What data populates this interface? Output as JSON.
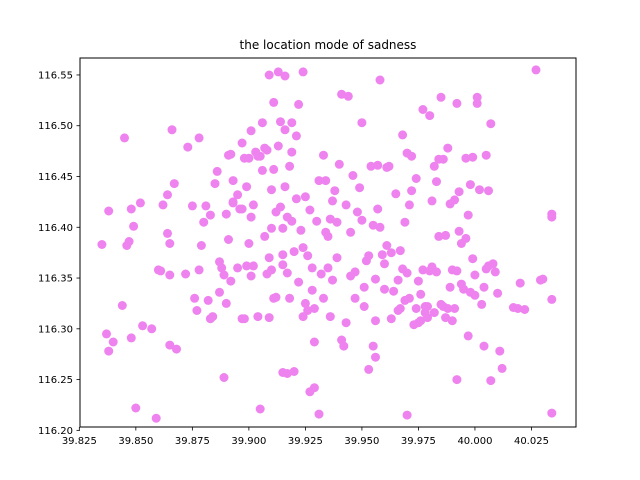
{
  "chart_data": {
    "type": "scatter",
    "title": "the location mode of sadness",
    "xlabel": "",
    "ylabel": "",
    "xlim": [
      39.8253,
      40.0447
    ],
    "ylim": [
      116.2033,
      116.5667
    ],
    "x_ticks": [
      "39.825",
      "39.850",
      "39.875",
      "39.900",
      "39.925",
      "39.950",
      "39.975",
      "40.000",
      "40.025"
    ],
    "y_ticks": [
      "116.20",
      "116.25",
      "116.30",
      "116.35",
      "116.40",
      "116.45",
      "116.50",
      "116.55"
    ],
    "grid": false,
    "legend": "none",
    "marker_color": "#ee82ee",
    "points": [
      [
        39.835,
        116.383
      ],
      [
        39.837,
        116.295
      ],
      [
        39.838,
        116.416
      ],
      [
        39.838,
        116.278
      ],
      [
        39.84,
        116.287
      ],
      [
        39.844,
        116.323
      ],
      [
        39.845,
        116.488
      ],
      [
        39.846,
        116.382
      ],
      [
        39.847,
        116.386
      ],
      [
        39.848,
        116.291
      ],
      [
        39.848,
        116.418
      ],
      [
        39.849,
        116.401
      ],
      [
        39.85,
        116.222
      ],
      [
        39.852,
        116.424
      ],
      [
        39.853,
        116.303
      ],
      [
        39.857,
        116.3
      ],
      [
        39.859,
        116.212
      ],
      [
        39.86,
        116.358
      ],
      [
        39.861,
        116.357
      ],
      [
        39.862,
        116.422
      ],
      [
        39.864,
        116.432
      ],
      [
        39.864,
        116.394
      ],
      [
        39.865,
        116.384
      ],
      [
        39.865,
        116.353
      ],
      [
        39.865,
        116.284
      ],
      [
        39.866,
        116.496
      ],
      [
        39.867,
        116.443
      ],
      [
        39.868,
        116.28
      ],
      [
        39.872,
        116.354
      ],
      [
        39.873,
        116.479
      ],
      [
        39.875,
        116.421
      ],
      [
        39.876,
        116.33
      ],
      [
        39.877,
        116.318
      ],
      [
        39.878,
        116.358
      ],
      [
        39.878,
        116.488
      ],
      [
        39.879,
        116.382
      ],
      [
        39.88,
        116.405
      ],
      [
        39.881,
        116.421
      ],
      [
        39.882,
        116.328
      ],
      [
        39.883,
        116.412
      ],
      [
        39.883,
        116.31
      ],
      [
        39.884,
        116.312
      ],
      [
        39.885,
        116.443
      ],
      [
        39.886,
        116.455
      ],
      [
        39.887,
        116.366
      ],
      [
        39.887,
        116.336
      ],
      [
        39.888,
        116.36
      ],
      [
        39.889,
        116.353
      ],
      [
        39.889,
        116.252
      ],
      [
        39.89,
        116.413
      ],
      [
        39.89,
        116.325
      ],
      [
        39.891,
        116.471
      ],
      [
        39.891,
        116.388
      ],
      [
        39.892,
        116.472
      ],
      [
        39.892,
        116.347
      ],
      [
        39.893,
        116.425
      ],
      [
        39.893,
        116.446
      ],
      [
        39.893,
        116.424
      ],
      [
        39.895,
        116.432
      ],
      [
        39.895,
        116.36
      ],
      [
        39.896,
        116.418
      ],
      [
        39.897,
        116.418
      ],
      [
        39.897,
        116.31
      ],
      [
        39.897,
        116.483
      ],
      [
        39.898,
        116.468
      ],
      [
        39.898,
        116.31
      ],
      [
        39.899,
        116.362
      ],
      [
        39.899,
        116.44
      ],
      [
        39.9,
        116.468
      ],
      [
        39.9,
        116.384
      ],
      [
        39.901,
        116.352
      ],
      [
        39.901,
        116.41
      ],
      [
        39.901,
        116.495
      ],
      [
        39.902,
        116.362
      ],
      [
        39.902,
        116.422
      ],
      [
        39.903,
        116.474
      ],
      [
        39.904,
        116.47
      ],
      [
        39.904,
        116.312
      ],
      [
        39.905,
        116.47
      ],
      [
        39.905,
        116.221
      ],
      [
        39.906,
        116.503
      ],
      [
        39.906,
        116.456
      ],
      [
        39.907,
        116.391
      ],
      [
        39.907,
        116.478
      ],
      [
        39.908,
        116.476
      ],
      [
        39.908,
        116.354
      ],
      [
        39.909,
        116.311
      ],
      [
        39.909,
        116.37
      ],
      [
        39.909,
        116.55
      ],
      [
        39.91,
        116.358
      ],
      [
        39.91,
        116.399
      ],
      [
        39.91,
        116.437
      ],
      [
        39.911,
        116.523
      ],
      [
        39.911,
        116.457
      ],
      [
        39.911,
        116.33
      ],
      [
        39.912,
        116.331
      ],
      [
        39.912,
        116.415
      ],
      [
        39.913,
        116.553
      ],
      [
        39.913,
        116.48
      ],
      [
        39.914,
        116.504
      ],
      [
        39.914,
        116.42
      ],
      [
        39.915,
        116.399
      ],
      [
        39.915,
        116.363
      ],
      [
        39.915,
        116.373
      ],
      [
        39.915,
        116.257
      ],
      [
        39.916,
        116.549
      ],
      [
        39.916,
        116.496
      ],
      [
        39.916,
        116.44
      ],
      [
        39.917,
        116.355
      ],
      [
        39.917,
        116.256
      ],
      [
        39.917,
        116.41
      ],
      [
        39.918,
        116.46
      ],
      [
        39.918,
        116.33
      ],
      [
        39.919,
        116.503
      ],
      [
        39.919,
        116.474
      ],
      [
        39.919,
        116.406
      ],
      [
        39.92,
        116.376
      ],
      [
        39.92,
        116.258
      ],
      [
        39.921,
        116.49
      ],
      [
        39.921,
        116.428
      ],
      [
        39.922,
        116.521
      ],
      [
        39.922,
        116.346
      ],
      [
        39.923,
        116.397
      ],
      [
        39.924,
        116.312
      ],
      [
        39.924,
        116.553
      ],
      [
        39.924,
        116.38
      ],
      [
        39.925,
        116.43
      ],
      [
        39.925,
        116.325
      ],
      [
        39.926,
        116.318
      ],
      [
        39.926,
        116.372
      ],
      [
        39.927,
        116.238
      ],
      [
        39.927,
        116.417
      ],
      [
        39.928,
        116.36
      ],
      [
        39.928,
        116.338
      ],
      [
        39.929,
        116.32
      ],
      [
        39.929,
        116.242
      ],
      [
        39.929,
        116.287
      ],
      [
        39.93,
        116.406
      ],
      [
        39.931,
        116.216
      ],
      [
        39.931,
        116.446
      ],
      [
        39.932,
        116.354
      ],
      [
        39.933,
        116.33
      ],
      [
        39.933,
        116.471
      ],
      [
        39.934,
        116.395
      ],
      [
        39.934,
        116.446
      ],
      [
        39.935,
        116.36
      ],
      [
        39.935,
        116.391
      ],
      [
        39.936,
        116.408
      ],
      [
        39.936,
        116.312
      ],
      [
        39.937,
        116.348
      ],
      [
        39.937,
        116.426
      ],
      [
        39.938,
        116.436
      ],
      [
        39.939,
        116.37
      ],
      [
        39.939,
        116.405
      ],
      [
        39.94,
        116.462
      ],
      [
        39.941,
        116.531
      ],
      [
        39.941,
        116.289
      ],
      [
        39.942,
        116.283
      ],
      [
        39.943,
        116.306
      ],
      [
        39.943,
        116.422
      ],
      [
        39.944,
        116.529
      ],
      [
        39.945,
        116.352
      ],
      [
        39.945,
        116.395
      ],
      [
        39.946,
        116.451
      ],
      [
        39.947,
        116.33
      ],
      [
        39.947,
        116.356
      ],
      [
        39.948,
        116.415
      ],
      [
        39.949,
        116.439
      ],
      [
        39.95,
        116.407
      ],
      [
        39.95,
        116.503
      ],
      [
        39.951,
        116.322
      ],
      [
        39.951,
        116.341
      ],
      [
        39.952,
        116.367
      ],
      [
        39.953,
        116.372
      ],
      [
        39.953,
        116.26
      ],
      [
        39.954,
        116.46
      ],
      [
        39.955,
        116.283
      ],
      [
        39.955,
        116.402
      ],
      [
        39.956,
        116.308
      ],
      [
        39.956,
        116.349
      ],
      [
        39.956,
        116.272
      ],
      [
        39.957,
        116.461
      ],
      [
        39.957,
        116.418
      ],
      [
        39.958,
        116.545
      ],
      [
        39.958,
        116.4
      ],
      [
        39.959,
        116.373
      ],
      [
        39.96,
        116.339
      ],
      [
        39.96,
        116.364
      ],
      [
        39.961,
        116.459
      ],
      [
        39.961,
        116.382
      ],
      [
        39.962,
        116.46
      ],
      [
        39.963,
        116.31
      ],
      [
        39.963,
        116.375
      ],
      [
        39.964,
        116.337
      ],
      [
        39.965,
        116.433
      ],
      [
        39.966,
        116.318
      ],
      [
        39.966,
        116.348
      ],
      [
        39.967,
        116.32
      ],
      [
        39.967,
        116.377
      ],
      [
        39.968,
        116.359
      ],
      [
        39.968,
        116.491
      ],
      [
        39.969,
        116.328
      ],
      [
        39.969,
        116.405
      ],
      [
        39.97,
        116.215
      ],
      [
        39.97,
        116.473
      ],
      [
        39.97,
        116.355
      ],
      [
        39.971,
        116.422
      ],
      [
        39.971,
        116.33
      ],
      [
        39.972,
        116.436
      ],
      [
        39.972,
        116.47
      ],
      [
        39.973,
        116.304
      ],
      [
        39.974,
        116.448
      ],
      [
        39.974,
        116.32
      ],
      [
        39.975,
        116.306
      ],
      [
        39.975,
        116.347
      ],
      [
        39.976,
        116.308
      ],
      [
        39.976,
        116.334
      ],
      [
        39.977,
        116.516
      ],
      [
        39.977,
        116.358
      ],
      [
        39.978,
        116.322
      ],
      [
        39.978,
        116.316
      ],
      [
        39.979,
        116.322
      ],
      [
        39.979,
        116.311
      ],
      [
        39.98,
        116.51
      ],
      [
        39.98,
        116.357
      ],
      [
        39.981,
        116.361
      ],
      [
        39.981,
        116.426
      ],
      [
        39.982,
        116.46
      ],
      [
        39.982,
        116.316
      ],
      [
        39.983,
        116.356
      ],
      [
        39.983,
        116.445
      ],
      [
        39.984,
        116.467
      ],
      [
        39.984,
        116.391
      ],
      [
        39.985,
        116.324
      ],
      [
        39.985,
        116.528
      ],
      [
        39.986,
        116.322
      ],
      [
        39.986,
        116.467
      ],
      [
        39.987,
        116.311
      ],
      [
        39.987,
        116.392
      ],
      [
        39.988,
        116.478
      ],
      [
        39.988,
        116.32
      ],
      [
        39.989,
        116.341
      ],
      [
        39.989,
        116.423
      ],
      [
        39.99,
        116.308
      ],
      [
        39.99,
        116.358
      ],
      [
        39.991,
        116.427
      ],
      [
        39.991,
        116.32
      ],
      [
        39.992,
        116.522
      ],
      [
        39.992,
        116.357
      ],
      [
        39.992,
        116.25
      ],
      [
        39.993,
        116.396
      ],
      [
        39.993,
        116.435
      ],
      [
        39.994,
        116.344
      ],
      [
        39.994,
        116.384
      ],
      [
        39.995,
        116.339
      ],
      [
        39.996,
        116.389
      ],
      [
        39.996,
        116.468
      ],
      [
        39.997,
        116.412
      ],
      [
        39.997,
        116.293
      ],
      [
        39.998,
        116.442
      ],
      [
        39.998,
        116.336
      ],
      [
        39.999,
        116.469
      ],
      [
        39.999,
        116.369
      ],
      [
        40.0,
        116.333
      ],
      [
        40.0,
        116.353
      ],
      [
        40.001,
        116.522
      ],
      [
        40.001,
        116.528
      ],
      [
        40.002,
        116.437
      ],
      [
        40.003,
        116.324
      ],
      [
        40.004,
        116.341
      ],
      [
        40.004,
        116.283
      ],
      [
        40.005,
        116.471
      ],
      [
        40.005,
        116.359
      ],
      [
        40.006,
        116.362
      ],
      [
        40.006,
        116.436
      ],
      [
        40.007,
        116.502
      ],
      [
        40.007,
        116.249
      ],
      [
        40.008,
        116.364
      ],
      [
        40.009,
        116.356
      ],
      [
        40.01,
        116.335
      ],
      [
        40.011,
        116.278
      ],
      [
        40.012,
        116.261
      ],
      [
        40.017,
        116.321
      ],
      [
        40.019,
        116.32
      ],
      [
        40.02,
        116.345
      ],
      [
        40.022,
        116.319
      ],
      [
        40.027,
        116.555
      ],
      [
        40.029,
        116.348
      ],
      [
        40.03,
        116.349
      ],
      [
        40.034,
        116.41
      ],
      [
        40.034,
        116.413
      ],
      [
        40.034,
        116.329
      ],
      [
        40.034,
        116.217
      ]
    ]
  }
}
